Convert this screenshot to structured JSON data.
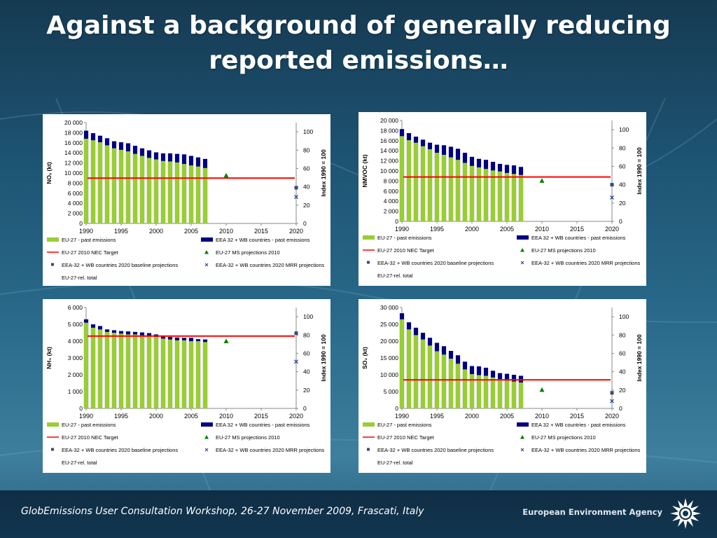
{
  "slide": {
    "title_line1": "Against a background of generally reducing",
    "title_line2": "reported emissions…"
  },
  "footer": {
    "text": "GlobEmissions User Consultation Workshop, 26-27 November 2009, Frascati, Italy",
    "agency": "European Environment Agency",
    "logo_icon": "eea-logo-icon"
  },
  "colors": {
    "eu27_bar": "#9acd32",
    "eea32_bar": "#000080",
    "target_line": "#ff0000",
    "ms_projection": "#008000",
    "baseline_projection": "#3b4a78",
    "mrr_projection": "#1f3d99"
  },
  "legend": {
    "past_eu": "EU-27 - past emissions",
    "past_eea": "EEA 32 + WB countries - past emissions",
    "target": "EU-27 2010 NEC Target",
    "ms_proj": "EU-27 MS projections 2010",
    "baseline": "EEA-32 + WB countries 2020 baseline projections",
    "mrr": "EEA-32 + WB countries 2020 MRR projections",
    "rel_total": "EU-27-rel. total"
  },
  "chart_data": [
    {
      "type": "bar",
      "ylabel": "NOₓ (kt)",
      "y2label": "Index 1990 = 100",
      "ylim": [
        0,
        20000
      ],
      "yticks": [
        "0",
        "2 000",
        "4 000",
        "6 000",
        "8 000",
        "10 000",
        "12 000",
        "14 000",
        "16 000",
        "18 000",
        "20 000"
      ],
      "y2lim": [
        0,
        110
      ],
      "y2ticks": [
        "0",
        "20",
        "40",
        "60",
        "80",
        "100"
      ],
      "xlim": [
        1990,
        2020
      ],
      "xticks": [
        "1990",
        "1995",
        "2000",
        "2005",
        "2010",
        "2015",
        "2020"
      ],
      "years": [
        1990,
        1991,
        1992,
        1993,
        1994,
        1995,
        1996,
        1997,
        1998,
        1999,
        2000,
        2001,
        2002,
        2003,
        2004,
        2005,
        2006,
        2007
      ],
      "series": [
        {
          "name": "EU-27 - past emissions",
          "values": [
            16800,
            16500,
            16100,
            15500,
            14900,
            14600,
            14300,
            13800,
            13400,
            13000,
            12700,
            12400,
            12300,
            12100,
            11800,
            11500,
            11300,
            11000
          ]
        },
        {
          "name": "EEA 32 + WB countries - past emissions",
          "values": [
            18400,
            17900,
            17400,
            16900,
            16300,
            16100,
            15900,
            15400,
            14900,
            14500,
            14100,
            13900,
            13900,
            13800,
            13700,
            13400,
            13100,
            12800
          ]
        }
      ],
      "target_value": 9000,
      "ms_projection": {
        "x": 2010,
        "value": 52
      },
      "baseline_2020": {
        "x": 2020,
        "value": 39
      },
      "mrr_2020": {
        "x": 2020,
        "value": 29
      }
    },
    {
      "type": "bar",
      "ylabel": "NMVOC (kt)",
      "y2label": "Index 1990 = 100",
      "ylim": [
        0,
        20000
      ],
      "yticks": [
        "0",
        "2 000",
        "4 000",
        "6 000",
        "8 000",
        "10 000",
        "12 000",
        "14 000",
        "16 000",
        "18 000",
        "20 000"
      ],
      "y2lim": [
        0,
        110
      ],
      "y2ticks": [
        "0",
        "20",
        "40",
        "60",
        "80",
        "100"
      ],
      "xlim": [
        1990,
        2020
      ],
      "xticks": [
        "1990",
        "1995",
        "2000",
        "2005",
        "2010",
        "2015",
        "2020"
      ],
      "years": [
        1990,
        1991,
        1992,
        1993,
        1994,
        1995,
        1996,
        1997,
        1998,
        1999,
        2000,
        2001,
        2002,
        2003,
        2004,
        2005,
        2006,
        2007
      ],
      "series": [
        {
          "name": "EU-27 - past emissions",
          "values": [
            16900,
            16100,
            15600,
            14900,
            14300,
            13600,
            13200,
            12700,
            12200,
            11600,
            11000,
            10700,
            10400,
            10100,
            9900,
            9600,
            9400,
            9200
          ]
        },
        {
          "name": "EEA 32 + WB countries - past emissions",
          "values": [
            18300,
            17500,
            16800,
            16200,
            15600,
            15200,
            15100,
            14800,
            14400,
            13600,
            12800,
            12400,
            12200,
            11800,
            11400,
            11200,
            11100,
            10800
          ]
        }
      ],
      "target_value": 8800,
      "ms_projection": {
        "x": 2010,
        "value": 44
      },
      "baseline_2020": {
        "x": 2020,
        "value": 40
      },
      "mrr_2020": {
        "x": 2020,
        "value": 26
      }
    },
    {
      "type": "bar",
      "ylabel": "NH₃ (kt)",
      "y2label": "Index 1990 = 100",
      "ylim": [
        0,
        6000
      ],
      "yticks": [
        "0",
        "1 000",
        "2 000",
        "3 000",
        "4 000",
        "5 000",
        "6 000"
      ],
      "y2lim": [
        0,
        110
      ],
      "y2ticks": [
        "0",
        "20",
        "40",
        "60",
        "80",
        "100"
      ],
      "xlim": [
        1990,
        2020
      ],
      "xticks": [
        "1990",
        "1995",
        "2000",
        "2005",
        "2010",
        "2015",
        "2020"
      ],
      "years": [
        1990,
        1991,
        1992,
        1993,
        1994,
        1995,
        1996,
        1997,
        1998,
        1999,
        2000,
        2001,
        2002,
        2003,
        2004,
        2005,
        2006,
        2007
      ],
      "series": [
        {
          "name": "EU-27 - past emissions",
          "values": [
            5100,
            4800,
            4700,
            4550,
            4500,
            4450,
            4400,
            4400,
            4350,
            4300,
            4250,
            4150,
            4100,
            4050,
            4050,
            4000,
            4000,
            3950
          ]
        },
        {
          "name": "EEA 32 + WB countries - past emissions",
          "values": [
            5300,
            5000,
            4900,
            4700,
            4650,
            4600,
            4580,
            4550,
            4520,
            4480,
            4400,
            4300,
            4250,
            4220,
            4200,
            4200,
            4120,
            4100
          ]
        }
      ],
      "target_value": 4300,
      "ms_projection": {
        "x": 2010,
        "value": 73
      },
      "baseline_2020": {
        "x": 2020,
        "value": 82
      },
      "mrr_2020": {
        "x": 2020,
        "value": 51
      }
    },
    {
      "type": "bar",
      "ylabel": "SO₂ (kt)",
      "y2label": "Index 1990 = 100",
      "ylim": [
        0,
        30000
      ],
      "yticks": [
        "0",
        "5 000",
        "10 000",
        "15 000",
        "20 000",
        "25 000",
        "30 000"
      ],
      "y2lim": [
        0,
        110
      ],
      "y2ticks": [
        "0",
        "20",
        "40",
        "60",
        "80",
        "100"
      ],
      "xlim": [
        1990,
        2020
      ],
      "xticks": [
        "1990",
        "1995",
        "2000",
        "2005",
        "2010",
        "2015",
        "2020"
      ],
      "years": [
        1990,
        1991,
        1992,
        1993,
        1994,
        1995,
        1996,
        1997,
        1998,
        1999,
        2000,
        2001,
        2002,
        2003,
        2004,
        2005,
        2006,
        2007
      ],
      "series": [
        {
          "name": "EU-27 - past emissions",
          "values": [
            26500,
            23500,
            21800,
            20500,
            18700,
            17000,
            16000,
            14800,
            13300,
            11600,
            10200,
            9900,
            9700,
            9200,
            8700,
            8300,
            8000,
            7700
          ]
        },
        {
          "name": "EEA 32 + WB countries - past emissions",
          "values": [
            28300,
            25600,
            24000,
            22500,
            21000,
            19500,
            18500,
            17100,
            15800,
            13900,
            12600,
            12500,
            12100,
            11200,
            10500,
            10300,
            10000,
            9700
          ]
        }
      ],
      "target_value": 8500,
      "ms_projection": {
        "x": 2010,
        "value": 20
      },
      "baseline_2020": {
        "x": 2020,
        "value": 17
      },
      "mrr_2020": {
        "x": 2020,
        "value": 8
      }
    }
  ]
}
